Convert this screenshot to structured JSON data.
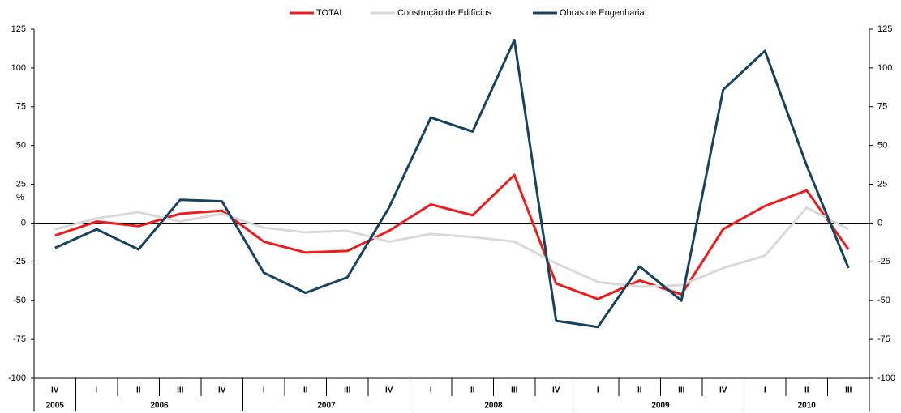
{
  "chart_data": {
    "type": "line",
    "ylabel": "%",
    "categories": [
      "IV",
      "I",
      "II",
      "III",
      "IV",
      "I",
      "II",
      "III",
      "IV",
      "I",
      "II",
      "III",
      "IV",
      "I",
      "II",
      "III",
      "IV",
      "I",
      "II",
      "III"
    ],
    "category_groups": [
      "2005",
      "2006",
      "2006",
      "2006",
      "2006",
      "2007",
      "2007",
      "2007",
      "2007",
      "2008",
      "2008",
      "2008",
      "2008",
      "2009",
      "2009",
      "2009",
      "2009",
      "2010",
      "2010",
      "2010"
    ],
    "series": [
      {
        "name": "TOTAL",
        "color": "#ee1c1c",
        "values": [
          -8,
          1,
          -2,
          6,
          8,
          -12,
          -19,
          -18,
          -5,
          12,
          5,
          31,
          -39,
          -49,
          -37,
          -46,
          -4,
          11,
          21,
          -17
        ]
      },
      {
        "name": "Construção de Edifícios",
        "color": "#d9d9d9",
        "values": [
          -4,
          3,
          7,
          1,
          6,
          -3,
          -6,
          -5,
          -12,
          -7,
          -9,
          -12,
          -26,
          -38,
          -41,
          -40,
          -29,
          -21,
          10,
          -4
        ]
      },
      {
        "name": "Obras de Engenharia",
        "color": "#17435f",
        "values": [
          -16,
          -4,
          -17,
          15,
          14,
          -32,
          -45,
          -35,
          10,
          68,
          59,
          118,
          -63,
          -67,
          -28,
          -50,
          86,
          111,
          37,
          -29
        ]
      }
    ],
    "ylim": [
      -100,
      125
    ],
    "yticks": [
      -100,
      -75,
      -50,
      -25,
      0,
      25,
      50,
      75,
      100,
      125
    ],
    "y2lim": [
      -100,
      125
    ],
    "y2ticks": [
      -100,
      -75,
      -50,
      -25,
      0,
      25,
      50,
      75,
      100,
      125
    ],
    "legend": "top"
  }
}
